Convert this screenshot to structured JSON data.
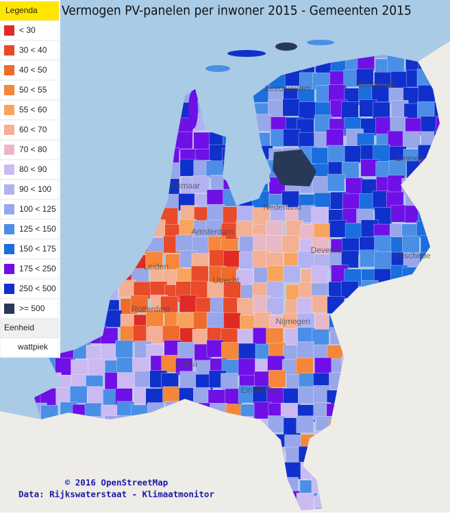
{
  "header": {
    "title": "Vermogen PV-panelen per inwoner 2015 - Gemeenten 2015"
  },
  "legend": {
    "title": "Legenda",
    "items": [
      {
        "label": "< 30",
        "color": "#e02a24"
      },
      {
        "label": "30 < 40",
        "color": "#e84a2a"
      },
      {
        "label": "40 < 50",
        "color": "#f06a2c"
      },
      {
        "label": "50 < 55",
        "color": "#f5863a"
      },
      {
        "label": "55 < 60",
        "color": "#f8a45e"
      },
      {
        "label": "60 < 70",
        "color": "#f4b094"
      },
      {
        "label": "70 < 80",
        "color": "#e8b8c6"
      },
      {
        "label": "80 < 90",
        "color": "#cbbaf2"
      },
      {
        "label": "90 < 100",
        "color": "#b3b2f0"
      },
      {
        "label": "100 < 125",
        "color": "#98a6ea"
      },
      {
        "label": "125 < 150",
        "color": "#4a8ee6"
      },
      {
        "label": "150 < 175",
        "color": "#1a6ede"
      },
      {
        "label": "175 < 250",
        "color": "#6e10e6"
      },
      {
        "label": "250 < 500",
        "color": "#1030cc"
      },
      {
        "label": ">= 500",
        "color": "#283856"
      }
    ],
    "unit_header": "Eenheid",
    "unit": "wattpiek"
  },
  "map": {
    "cities": [
      "Leeuwarden",
      "Groningen",
      "Emmen",
      "Alkmaar",
      "Amsterdam",
      "Nederland",
      "Deventer",
      "Enschede",
      "Leiden",
      "Utrecht",
      "Rotterdam",
      "Nijmegen",
      "Breda",
      "Eindhoven"
    ]
  },
  "credits": [
    "© 2016 OpenStreetMap",
    "Data: Rijkswaterstaat - Klimaatmonitor"
  ]
}
